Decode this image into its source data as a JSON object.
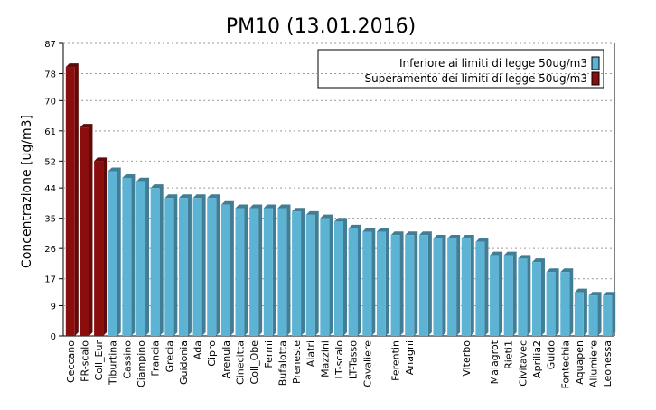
{
  "chart_data": {
    "type": "bar",
    "title": "PM10 (13.01.2016)",
    "y_label": "Concentrazione [ug/m3]",
    "categories": [
      "Ceccano",
      "FR-scalo",
      "Coll_Eur",
      "Tiburtina",
      "Cassino",
      "Ciampino",
      "Francia",
      "Grecia",
      "Guidonia",
      "Ada",
      "Cipro",
      "Arenula",
      "Cinecitta",
      "Coll_Obe",
      "Fermi",
      "Bufalotta",
      "Preneste",
      "Alatri",
      "Mazzini",
      "LT-scalo",
      "LT-Tasso",
      "Cavaliere",
      null,
      "Ferentin",
      "Anagni",
      null,
      null,
      null,
      "Viterbo",
      null,
      "Malagrot",
      "Rieti1",
      "Civitavec",
      "Aprilia2",
      "Guido",
      "Fontechia",
      "Aquapen",
      "Allumiere",
      "Leonessa"
    ],
    "series": [
      {
        "name": "Inferiore ai limiti di legge 50ug/m3",
        "color": "#5db3d3",
        "values": [
          null,
          null,
          null,
          49,
          47,
          46,
          44,
          41,
          41,
          41,
          41,
          39,
          38,
          38,
          38,
          38,
          37,
          36,
          35,
          34,
          32,
          31,
          31,
          30,
          30,
          30,
          29,
          29,
          29,
          28,
          24,
          24,
          23,
          22,
          19,
          19,
          13,
          12,
          12
        ]
      },
      {
        "name": "Superamento dei limiti di legge 50ug/m3",
        "color": "#8b0e0e",
        "values": [
          80,
          62,
          52,
          null,
          null,
          null,
          null,
          null,
          null,
          null,
          null,
          null,
          null,
          null,
          null,
          null,
          null,
          null,
          null,
          null,
          null,
          null,
          null,
          null,
          null,
          null,
          null,
          null,
          null,
          null,
          null,
          null,
          null,
          null,
          null,
          null,
          null,
          null,
          null
        ]
      }
    ],
    "ylim": [
      0,
      87
    ],
    "yticks": [
      0,
      9,
      17,
      26,
      35,
      44,
      52,
      61,
      70,
      78,
      87
    ],
    "grid": true,
    "legend": "top-right"
  }
}
